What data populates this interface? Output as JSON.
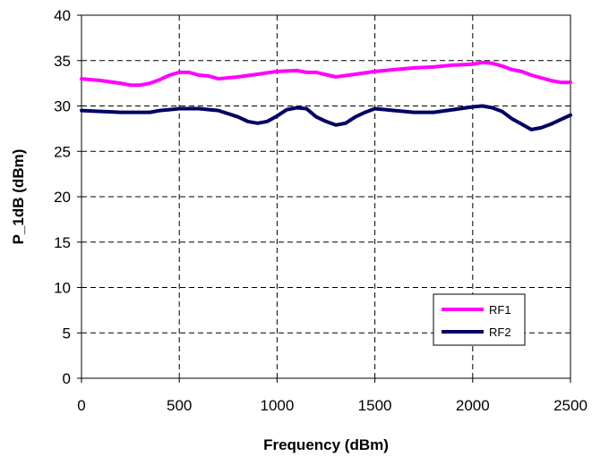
{
  "chart_data": {
    "type": "line",
    "xlabel": "Frequency (dBm)",
    "ylabel": "P_1dB (dBm)",
    "xlim": [
      0,
      2500
    ],
    "ylim": [
      0,
      40
    ],
    "xticks": [
      0,
      500,
      1000,
      1500,
      2000,
      2500
    ],
    "yticks": [
      0,
      5,
      10,
      15,
      20,
      25,
      30,
      35,
      40
    ],
    "grid": true,
    "legend_position": "bottom-right",
    "series": [
      {
        "name": "RF1",
        "color": "#ff00ff",
        "x": [
          0,
          100,
          200,
          250,
          300,
          350,
          400,
          450,
          500,
          550,
          600,
          650,
          700,
          800,
          900,
          1000,
          1100,
          1150,
          1200,
          1300,
          1400,
          1500,
          1600,
          1700,
          1800,
          1900,
          2000,
          2050,
          2100,
          2150,
          2200,
          2250,
          2300,
          2400,
          2450,
          2500
        ],
        "y": [
          33.0,
          32.8,
          32.5,
          32.3,
          32.3,
          32.5,
          32.9,
          33.4,
          33.7,
          33.7,
          33.4,
          33.3,
          33.0,
          33.2,
          33.5,
          33.8,
          33.9,
          33.7,
          33.7,
          33.2,
          33.5,
          33.8,
          34.0,
          34.2,
          34.3,
          34.5,
          34.6,
          34.8,
          34.7,
          34.4,
          34.0,
          33.8,
          33.4,
          32.8,
          32.6,
          32.6
        ]
      },
      {
        "name": "RF2",
        "color": "#000066",
        "x": [
          0,
          100,
          200,
          300,
          350,
          400,
          450,
          500,
          550,
          600,
          700,
          800,
          850,
          900,
          950,
          1000,
          1050,
          1100,
          1150,
          1200,
          1250,
          1300,
          1350,
          1400,
          1450,
          1500,
          1600,
          1700,
          1800,
          1900,
          2000,
          2050,
          2100,
          2150,
          2200,
          2250,
          2300,
          2350,
          2400,
          2450,
          2500
        ],
        "y": [
          29.5,
          29.4,
          29.3,
          29.3,
          29.3,
          29.5,
          29.6,
          29.7,
          29.7,
          29.7,
          29.5,
          28.8,
          28.3,
          28.1,
          28.3,
          28.9,
          29.6,
          29.8,
          29.7,
          28.8,
          28.3,
          27.9,
          28.1,
          28.8,
          29.3,
          29.7,
          29.5,
          29.3,
          29.3,
          29.6,
          29.9,
          30.0,
          29.8,
          29.4,
          28.6,
          28.0,
          27.4,
          27.6,
          28.0,
          28.5,
          29.0
        ]
      }
    ]
  }
}
